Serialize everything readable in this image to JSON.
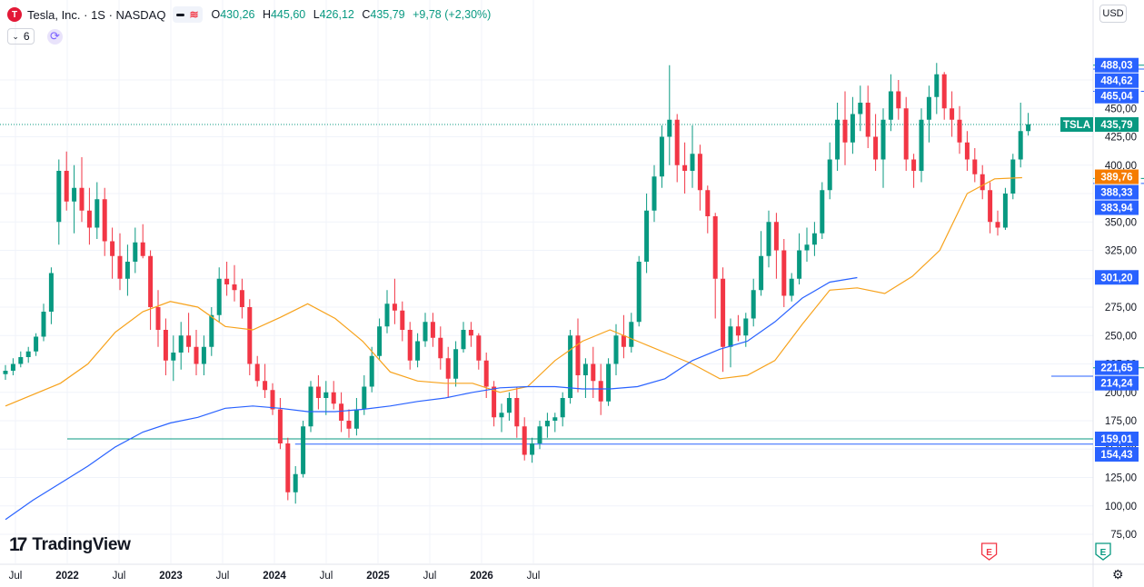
{
  "header": {
    "logo_letter": "T",
    "symbol_title": "Tesla, Inc. · 1S · NASDAQ",
    "ohlc": [
      {
        "key": "O",
        "value": "430,26"
      },
      {
        "key": "H",
        "value": "445,60"
      },
      {
        "key": "L",
        "value": "426,12"
      },
      {
        "key": "C",
        "value": "435,79"
      }
    ],
    "change": "+9,78 (+2,30%)",
    "indicator_count": "6",
    "currency": "USD"
  },
  "branding": {
    "name": "TradingView"
  },
  "colors": {
    "up": "#089981",
    "down": "#f23645",
    "ma_short": "#f7a21b",
    "ma_long": "#2962ff",
    "price_label": "#089981",
    "level_label": "#2962ff",
    "ma_label": "#f57c00"
  },
  "chart_data": {
    "type": "candlestick",
    "series_name": "TSLA",
    "current_price": 435.79,
    "ylim": [
      65,
      500
    ],
    "x_labels": [
      "Jul",
      "2022",
      "Jul",
      "2023",
      "Jul",
      "2024",
      "Jul",
      "2025",
      "Jul",
      "2026",
      "Jul"
    ],
    "y_ticks": [
      "75,00",
      "100,00",
      "125,00",
      "150,00",
      "175,00",
      "200,00",
      "225,00",
      "250,00",
      "275,00",
      "300,00",
      "325,00",
      "350,00",
      "375,00",
      "400,00",
      "425,00",
      "450,00",
      "475,00"
    ],
    "price_labels": [
      {
        "label": "TSLA",
        "value": "435,79",
        "kind": "price"
      },
      {
        "value": "488,03",
        "kind": "level"
      },
      {
        "value": "484,62",
        "kind": "level"
      },
      {
        "value": "465,04",
        "kind": "level"
      },
      {
        "value": "389,76",
        "kind": "ma"
      },
      {
        "value": "388,33",
        "kind": "level"
      },
      {
        "value": "383,94",
        "kind": "level"
      },
      {
        "value": "301,20",
        "kind": "level"
      },
      {
        "value": "221,65",
        "kind": "level"
      },
      {
        "value": "214,24",
        "kind": "level"
      },
      {
        "value": "159,01",
        "kind": "level"
      },
      {
        "value": "154,43",
        "kind": "level"
      }
    ],
    "earnings_markers": [
      {
        "t": 27.4,
        "color": "red"
      },
      {
        "t": 28.5,
        "color": "green"
      },
      {
        "t": 29.55,
        "color": "red"
      },
      {
        "t": 30.5,
        "color": "red"
      },
      {
        "t": 31.55,
        "color": "green"
      },
      {
        "t": 32.6,
        "color": "red"
      },
      {
        "t": 33.7,
        "color": "green"
      },
      {
        "t": 34.7,
        "color": "green"
      },
      {
        "t": 35.8,
        "color": "future"
      }
    ],
    "earnings_letter": "E",
    "levels": [
      {
        "v": 488.03,
        "t0": 29.4,
        "style": "solid",
        "color": "#089981"
      },
      {
        "v": 484.62,
        "t0": 29.4,
        "style": "solid",
        "color": "#2962ff"
      },
      {
        "v": 465.04,
        "t0": 29.4,
        "style": "dashed",
        "color": "#2962ff"
      },
      {
        "v": 388.33,
        "t0": 33.4,
        "style": "dashed",
        "color": "#089981"
      },
      {
        "v": 383.94,
        "t0": 33.4,
        "style": "dashed",
        "color": "#2962ff"
      },
      {
        "v": 221.65,
        "t0": 30.3,
        "style": "solid",
        "color": "#089981"
      },
      {
        "v": 214.24,
        "t0": 28.0,
        "style": "solid",
        "color": "#2962ff"
      },
      {
        "v": 159.01,
        "t0": 18.5,
        "style": "solid",
        "color": "#089981"
      },
      {
        "v": 154.43,
        "t0": 20.7,
        "style": "solid",
        "color": "#2962ff"
      }
    ],
    "ma50_points": [
      [
        0,
        188
      ],
      [
        2,
        208
      ],
      [
        3,
        225
      ],
      [
        4,
        253
      ],
      [
        5,
        271
      ],
      [
        6,
        280
      ],
      [
        7,
        275
      ],
      [
        8,
        258
      ],
      [
        9,
        255
      ],
      [
        10,
        266
      ],
      [
        11,
        278
      ],
      [
        12,
        265
      ],
      [
        13,
        245
      ],
      [
        14,
        218
      ],
      [
        15,
        210
      ],
      [
        16,
        208
      ],
      [
        17,
        208
      ],
      [
        18,
        200
      ],
      [
        19,
        205
      ],
      [
        20,
        228
      ],
      [
        21,
        245
      ],
      [
        22,
        255
      ],
      [
        23,
        245
      ],
      [
        24,
        235
      ],
      [
        25,
        225
      ],
      [
        26,
        212
      ],
      [
        27,
        215
      ],
      [
        28,
        228
      ],
      [
        29,
        260
      ],
      [
        30,
        290
      ],
      [
        31,
        292
      ],
      [
        32,
        287
      ],
      [
        33,
        302
      ],
      [
        34,
        325
      ],
      [
        35,
        375
      ],
      [
        36,
        388
      ],
      [
        37,
        389
      ]
    ],
    "ma200_points": [
      [
        0,
        88
      ],
      [
        1,
        105
      ],
      [
        2,
        120
      ],
      [
        3,
        135
      ],
      [
        4,
        152
      ],
      [
        5,
        165
      ],
      [
        6,
        173
      ],
      [
        7,
        178
      ],
      [
        8,
        186
      ],
      [
        9,
        188
      ],
      [
        10,
        186
      ],
      [
        11,
        183
      ],
      [
        12,
        183
      ],
      [
        13,
        185
      ],
      [
        14,
        188
      ],
      [
        15,
        192
      ],
      [
        16,
        195
      ],
      [
        17,
        200
      ],
      [
        18,
        204
      ],
      [
        19,
        205
      ],
      [
        20,
        205
      ],
      [
        21,
        203
      ],
      [
        22,
        203
      ],
      [
        23,
        205
      ],
      [
        24,
        212
      ],
      [
        25,
        228
      ],
      [
        26,
        238
      ],
      [
        27,
        245
      ],
      [
        28,
        262
      ],
      [
        29,
        283
      ],
      [
        30,
        297
      ],
      [
        31,
        301
      ]
    ],
    "candles": [
      [
        0,
        216,
        224,
        211,
        219
      ],
      [
        1,
        219,
        230,
        215,
        225
      ],
      [
        2,
        225,
        236,
        222,
        231
      ],
      [
        3,
        231,
        240,
        226,
        236
      ],
      [
        4,
        236,
        252,
        232,
        249
      ],
      [
        5,
        249,
        278,
        245,
        271
      ],
      [
        6,
        271,
        310,
        260,
        305
      ],
      [
        7,
        350,
        405,
        330,
        395
      ],
      [
        8,
        395,
        412,
        360,
        368
      ],
      [
        9,
        368,
        400,
        340,
        380
      ],
      [
        10,
        380,
        407,
        350,
        360
      ],
      [
        11,
        360,
        380,
        330,
        345
      ],
      [
        12,
        345,
        385,
        335,
        370
      ],
      [
        13,
        370,
        380,
        320,
        333
      ],
      [
        14,
        333,
        345,
        300,
        320
      ],
      [
        15,
        320,
        340,
        290,
        300
      ],
      [
        16,
        300,
        330,
        285,
        315
      ],
      [
        17,
        315,
        345,
        305,
        332
      ],
      [
        18,
        332,
        348,
        318,
        320
      ],
      [
        19,
        320,
        325,
        255,
        275
      ],
      [
        20,
        275,
        290,
        240,
        255
      ],
      [
        21,
        255,
        265,
        215,
        228
      ],
      [
        22,
        228,
        250,
        210,
        235
      ],
      [
        23,
        235,
        262,
        220,
        250
      ],
      [
        24,
        250,
        270,
        235,
        240
      ],
      [
        25,
        240,
        255,
        215,
        225
      ],
      [
        26,
        225,
        250,
        215,
        240
      ],
      [
        27,
        240,
        275,
        232,
        268
      ],
      [
        28,
        268,
        310,
        262,
        300
      ],
      [
        29,
        300,
        315,
        285,
        295
      ],
      [
        30,
        295,
        312,
        280,
        290
      ],
      [
        31,
        290,
        300,
        265,
        275
      ],
      [
        32,
        275,
        282,
        215,
        225
      ],
      [
        33,
        225,
        232,
        205,
        210
      ],
      [
        34,
        210,
        225,
        195,
        202
      ],
      [
        35,
        202,
        208,
        180,
        185
      ],
      [
        36,
        185,
        195,
        150,
        155
      ],
      [
        37,
        155,
        160,
        105,
        112
      ],
      [
        38,
        112,
        135,
        102,
        128
      ],
      [
        39,
        128,
        175,
        125,
        170
      ],
      [
        40,
        170,
        210,
        165,
        205
      ],
      [
        41,
        205,
        215,
        185,
        195
      ],
      [
        42,
        195,
        210,
        180,
        200
      ],
      [
        43,
        200,
        210,
        185,
        190
      ],
      [
        44,
        190,
        200,
        165,
        175
      ],
      [
        45,
        175,
        185,
        160,
        168
      ],
      [
        46,
        168,
        195,
        162,
        185
      ],
      [
        47,
        185,
        215,
        180,
        205
      ],
      [
        48,
        205,
        240,
        200,
        232
      ],
      [
        49,
        232,
        265,
        228,
        258
      ],
      [
        50,
        258,
        290,
        252,
        278
      ],
      [
        51,
        278,
        300,
        260,
        272
      ],
      [
        52,
        272,
        280,
        245,
        255
      ],
      [
        53,
        255,
        262,
        220,
        228
      ],
      [
        54,
        228,
        252,
        222,
        245
      ],
      [
        55,
        245,
        270,
        240,
        262
      ],
      [
        56,
        262,
        270,
        240,
        248
      ],
      [
        57,
        248,
        258,
        220,
        230
      ],
      [
        58,
        230,
        240,
        195,
        212
      ],
      [
        59,
        212,
        245,
        205,
        238
      ],
      [
        60,
        238,
        262,
        235,
        255
      ],
      [
        61,
        255,
        262,
        240,
        250
      ],
      [
        62,
        250,
        252,
        220,
        228
      ],
      [
        63,
        228,
        235,
        195,
        205
      ],
      [
        64,
        205,
        210,
        170,
        178
      ],
      [
        65,
        178,
        190,
        165,
        182
      ],
      [
        66,
        182,
        200,
        175,
        195
      ],
      [
        67,
        195,
        205,
        160,
        170
      ],
      [
        68,
        170,
        178,
        140,
        145
      ],
      [
        69,
        145,
        160,
        138,
        155
      ],
      [
        70,
        155,
        175,
        150,
        170
      ],
      [
        71,
        170,
        182,
        160,
        175
      ],
      [
        72,
        175,
        182,
        165,
        178
      ],
      [
        73,
        178,
        200,
        170,
        195
      ],
      [
        74,
        195,
        255,
        190,
        250
      ],
      [
        75,
        250,
        265,
        200,
        215
      ],
      [
        76,
        215,
        230,
        195,
        225
      ],
      [
        77,
        225,
        240,
        195,
        210
      ],
      [
        78,
        210,
        225,
        180,
        192
      ],
      [
        79,
        192,
        230,
        188,
        225
      ],
      [
        80,
        225,
        260,
        215,
        250
      ],
      [
        81,
        250,
        268,
        230,
        240
      ],
      [
        82,
        240,
        270,
        235,
        262
      ],
      [
        83,
        262,
        320,
        258,
        315
      ],
      [
        84,
        315,
        375,
        305,
        360
      ],
      [
        85,
        360,
        400,
        350,
        390
      ],
      [
        86,
        390,
        435,
        380,
        425
      ],
      [
        87,
        425,
        488,
        400,
        440
      ],
      [
        88,
        440,
        445,
        385,
        400
      ],
      [
        89,
        400,
        420,
        375,
        395
      ],
      [
        90,
        395,
        435,
        380,
        410
      ],
      [
        91,
        410,
        418,
        360,
        378
      ],
      [
        92,
        378,
        382,
        340,
        355
      ],
      [
        93,
        355,
        358,
        265,
        300
      ],
      [
        94,
        300,
        310,
        218,
        240
      ],
      [
        95,
        240,
        265,
        222,
        258
      ],
      [
        96,
        258,
        268,
        245,
        250
      ],
      [
        97,
        250,
        270,
        240,
        265
      ],
      [
        98,
        265,
        300,
        258,
        290
      ],
      [
        99,
        290,
        342,
        285,
        320
      ],
      [
        100,
        320,
        360,
        310,
        350
      ],
      [
        101,
        350,
        358,
        300,
        325
      ],
      [
        102,
        325,
        335,
        275,
        285
      ],
      [
        103,
        285,
        305,
        280,
        300
      ],
      [
        104,
        300,
        340,
        295,
        325
      ],
      [
        105,
        325,
        345,
        315,
        330
      ],
      [
        106,
        330,
        350,
        320,
        340
      ],
      [
        107,
        340,
        385,
        335,
        378
      ],
      [
        108,
        378,
        420,
        370,
        405
      ],
      [
        109,
        405,
        455,
        395,
        440
      ],
      [
        110,
        440,
        465,
        400,
        420
      ],
      [
        111,
        420,
        460,
        410,
        445
      ],
      [
        112,
        445,
        470,
        430,
        455
      ],
      [
        113,
        455,
        470,
        415,
        425
      ],
      [
        114,
        425,
        445,
        395,
        405
      ],
      [
        115,
        405,
        450,
        380,
        440
      ],
      [
        116,
        440,
        480,
        430,
        465
      ],
      [
        117,
        465,
        475,
        440,
        450
      ],
      [
        118,
        450,
        460,
        395,
        405
      ],
      [
        119,
        405,
        410,
        380,
        395
      ],
      [
        120,
        395,
        450,
        385,
        440
      ],
      [
        121,
        440,
        470,
        420,
        460
      ],
      [
        122,
        460,
        490,
        445,
        480
      ],
      [
        123,
        480,
        482,
        440,
        450
      ],
      [
        124,
        450,
        465,
        425,
        440
      ],
      [
        125,
        440,
        452,
        410,
        420
      ],
      [
        126,
        420,
        430,
        395,
        405
      ],
      [
        127,
        405,
        415,
        385,
        392
      ],
      [
        128,
        392,
        400,
        370,
        378
      ],
      [
        129,
        378,
        385,
        340,
        350
      ],
      [
        130,
        350,
        360,
        338,
        345
      ],
      [
        131,
        345,
        380,
        343,
        375
      ],
      [
        132,
        375,
        410,
        370,
        405
      ],
      [
        133,
        405,
        455,
        398,
        430
      ],
      [
        134,
        430,
        446,
        426,
        436
      ]
    ]
  }
}
